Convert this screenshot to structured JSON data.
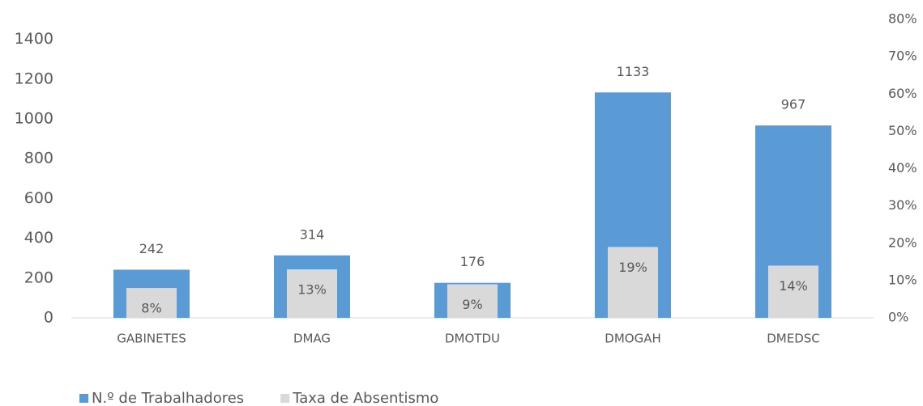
{
  "chart_data": {
    "type": "bar",
    "categories": [
      "GABINETES",
      "DMAG",
      "DMOTDU",
      "DMOGAH",
      "DMEDSC"
    ],
    "series": [
      {
        "name": "N.º de Trabalhadores",
        "color": "#5b9bd5",
        "values": [
          242,
          314,
          176,
          1133,
          967
        ]
      },
      {
        "name": "Taxa de Absentismo",
        "color": "#d9d9d9",
        "axis": "y2",
        "values": [
          8,
          13,
          9,
          19,
          14
        ],
        "value_labels": [
          "8%",
          "13%",
          "9%",
          "19%",
          "14%"
        ]
      }
    ],
    "ylim": [
      0,
      1500
    ],
    "yticks": [
      0,
      200,
      400,
      600,
      800,
      1000,
      1200,
      1400
    ],
    "y2lim": [
      0,
      80
    ],
    "y2ticks": [
      {
        "value": 0,
        "label": "0%"
      },
      {
        "value": 10,
        "label": "10%"
      },
      {
        "value": 20,
        "label": "20%"
      },
      {
        "value": 30,
        "label": "30%"
      },
      {
        "value": 40,
        "label": "40%"
      },
      {
        "value": 50,
        "label": "50%"
      },
      {
        "value": 60,
        "label": "60%"
      },
      {
        "value": 70,
        "label": "70%"
      },
      {
        "value": 80,
        "label": "80%"
      }
    ],
    "legend": "bottom-left",
    "grid": false
  }
}
